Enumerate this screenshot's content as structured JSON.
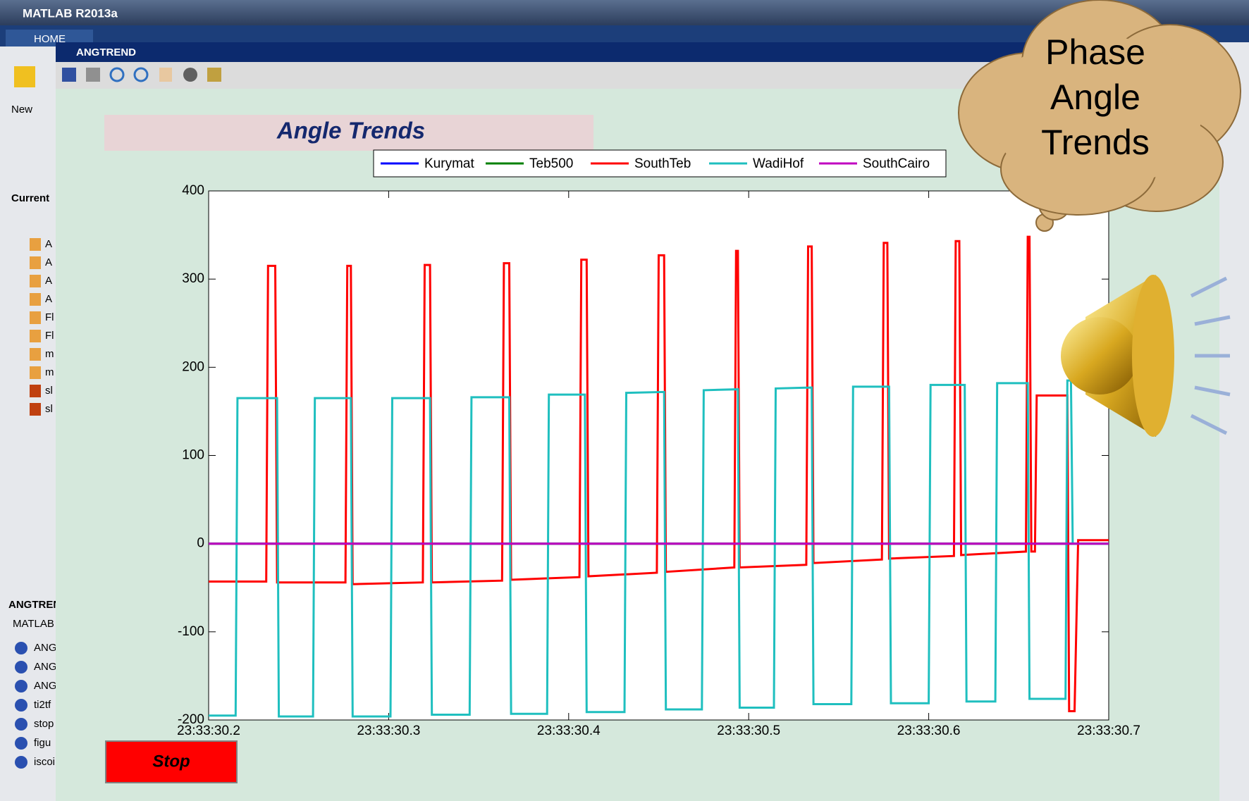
{
  "app_title": "MATLAB R2013a",
  "tab": "HOME",
  "window_title": "ANGTREND",
  "left_panel": {
    "new_label": "New",
    "current_label": "Current",
    "files": [
      "A",
      "A",
      "A",
      "A",
      "Fl",
      "Fl",
      "m",
      "m",
      "sl",
      "sl"
    ],
    "section_label": "ANGTREN",
    "section_sub": "MATLAB",
    "functions": [
      "ANG",
      "ANG",
      "ANG",
      "ti2tf",
      "stop",
      "figu",
      "iscoi"
    ]
  },
  "stop_button": "Stop",
  "callout": [
    "Phase",
    "Angle",
    "Trends"
  ],
  "chart_data": {
    "type": "line",
    "title": "Angle Trends",
    "xlim": [
      30.2,
      30.7
    ],
    "xticks": [
      {
        "value": 30.2,
        "label": "23:33:30.2"
      },
      {
        "value": 30.3,
        "label": "23:33:30.3"
      },
      {
        "value": 30.4,
        "label": "23:33:30.4"
      },
      {
        "value": 30.5,
        "label": "23:33:30.5"
      },
      {
        "value": 30.6,
        "label": "23:33:30.6"
      },
      {
        "value": 30.7,
        "label": "23:33:30.7"
      }
    ],
    "ylim": [
      -200,
      400
    ],
    "yticks": [
      -200,
      -100,
      0,
      100,
      200,
      300,
      400
    ],
    "series": [
      {
        "name": "Kurymat",
        "color": "#0000ff",
        "x": [
          30.2,
          30.7
        ],
        "values": [
          0,
          0
        ]
      },
      {
        "name": "Teb500",
        "color": "#008000",
        "x": [
          30.2,
          30.7
        ],
        "values": [
          0,
          0
        ]
      },
      {
        "name": "SouthTeb",
        "color": "#ff0000",
        "x": [
          30.2,
          30.232,
          30.233,
          30.237,
          30.238,
          30.276,
          30.277,
          30.279,
          30.28,
          30.319,
          30.32,
          30.323,
          30.324,
          30.363,
          30.364,
          30.367,
          30.368,
          30.406,
          30.407,
          30.41,
          30.411,
          30.449,
          30.45,
          30.453,
          30.454,
          30.492,
          30.493,
          30.494,
          30.495,
          30.532,
          30.533,
          30.535,
          30.536,
          30.574,
          30.575,
          30.577,
          30.578,
          30.614,
          30.615,
          30.617,
          30.618,
          30.654,
          30.655,
          30.656,
          30.657,
          30.659,
          30.66,
          30.677,
          30.678,
          30.681,
          30.683,
          30.7
        ],
        "values": [
          -43,
          -43,
          315,
          315,
          -44,
          -44,
          315,
          315,
          -46,
          -44,
          316,
          316,
          -44,
          -42,
          318,
          318,
          -41,
          -38,
          322,
          322,
          -37,
          -33,
          327,
          327,
          -32,
          -27,
          332,
          332,
          -27,
          -24,
          337,
          337,
          -22,
          -18,
          341,
          341,
          -17,
          -14,
          343,
          343,
          -13,
          -9,
          348,
          348,
          -9,
          -9,
          168,
          168,
          -190,
          -190,
          4,
          4
        ]
      },
      {
        "name": "WadiHof",
        "color": "#1fbfbf",
        "x": [
          30.2,
          30.215,
          30.216,
          30.238,
          30.239,
          30.258,
          30.259,
          30.279,
          30.28,
          30.301,
          30.302,
          30.323,
          30.324,
          30.345,
          30.346,
          30.367,
          30.368,
          30.388,
          30.389,
          30.409,
          30.41,
          30.431,
          30.432,
          30.453,
          30.454,
          30.474,
          30.475,
          30.494,
          30.495,
          30.514,
          30.515,
          30.535,
          30.536,
          30.557,
          30.558,
          30.578,
          30.579,
          30.6,
          30.601,
          30.62,
          30.621,
          30.637,
          30.638,
          30.655,
          30.656,
          30.676,
          30.677,
          30.679,
          30.68,
          30.7
        ],
        "values": [
          -195,
          -195,
          165,
          165,
          -196,
          -196,
          165,
          165,
          -196,
          -196,
          165,
          165,
          -194,
          -194,
          166,
          166,
          -193,
          -193,
          169,
          169,
          -191,
          -191,
          171,
          172,
          -188,
          -188,
          174,
          175,
          -186,
          -186,
          176,
          177,
          -182,
          -182,
          178,
          178,
          -181,
          -181,
          180,
          180,
          -179,
          -179,
          182,
          182,
          -176,
          -176,
          185,
          185,
          0,
          0
        ]
      },
      {
        "name": "SouthCairo",
        "color": "#c000c0",
        "x": [
          30.2,
          30.7
        ],
        "values": [
          0,
          0
        ]
      }
    ]
  }
}
